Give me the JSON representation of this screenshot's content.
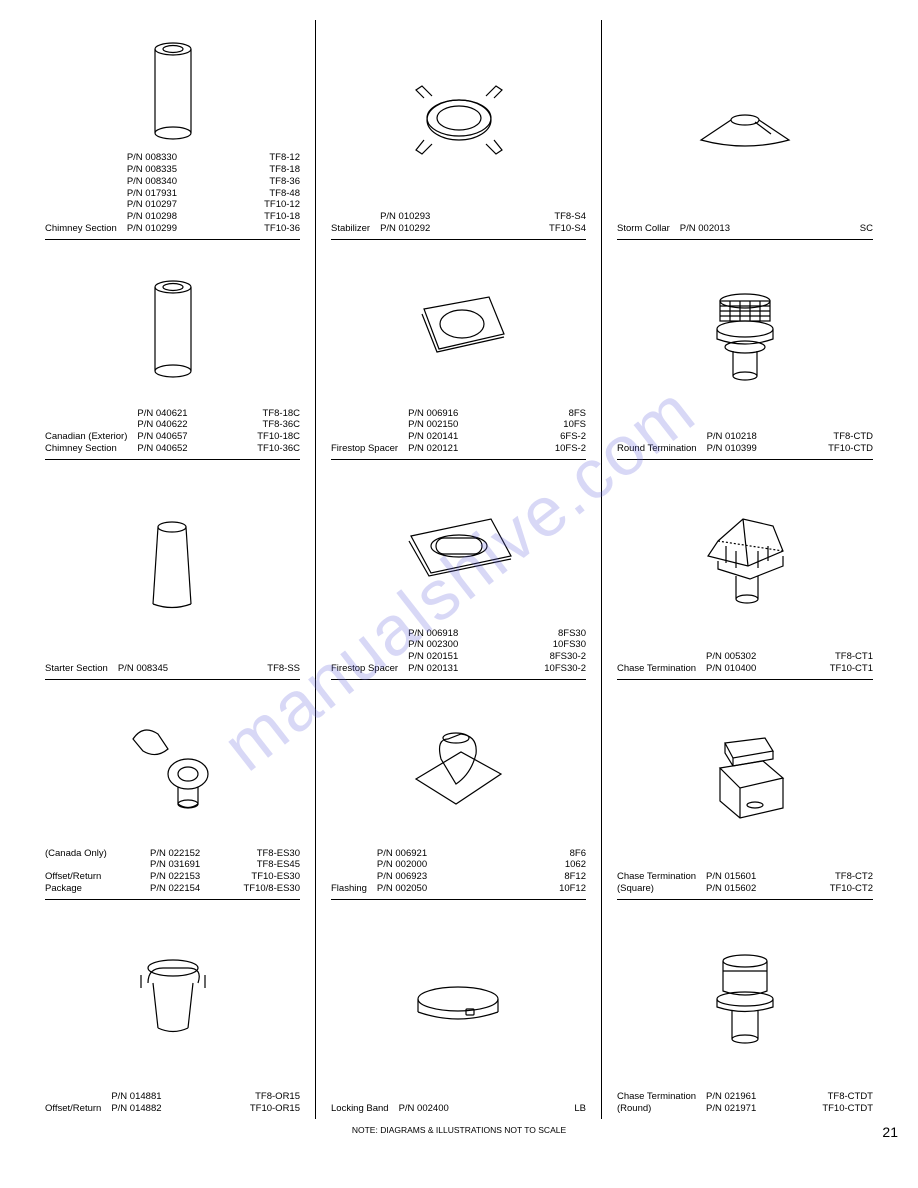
{
  "page_number": "21",
  "footer_note": "NOTE: DIAGRAMS & ILLUSTRATIONS NOT TO SCALE",
  "watermark": "manualshive.com",
  "columns": [
    [
      {
        "title": "Chimney Section",
        "pns": [
          "P/N 008330",
          "P/N 008335",
          "P/N 008340",
          "P/N 017931",
          "P/N 010297",
          "P/N 010298",
          "P/N 010299"
        ],
        "codes": [
          "TF8-12",
          "TF8-18",
          "TF8-36",
          "TF8-48",
          "TF10-12",
          "TF10-18",
          "TF10-36"
        ],
        "shape": "cylinder"
      },
      {
        "title": "Canadian (Exterior)\nChimney Section",
        "pns": [
          "P/N 040621",
          "P/N 040622",
          "P/N 040657",
          "P/N 040652"
        ],
        "codes": [
          "TF8-18C",
          "TF8-36C",
          "TF10-18C",
          "TF10-36C"
        ],
        "shape": "cylinder"
      },
      {
        "title": "Starter Section",
        "pns": [
          "P/N 008345"
        ],
        "codes": [
          "TF8-SS"
        ],
        "shape": "tapered-cyl"
      },
      {
        "title": "(Canada Only)\n\nOffset/Return Package",
        "pns": [
          "P/N 022152",
          "P/N 031691",
          "P/N 022153",
          "P/N 022154"
        ],
        "codes": [
          "TF8-ES30",
          "TF8-ES45",
          "TF10-ES30",
          "TF10/8-ES30"
        ],
        "shape": "offset-pkg"
      },
      {
        "title": "Offset/Return",
        "pns": [
          "P/N 014881",
          "P/N 014882"
        ],
        "codes": [
          "TF8-OR15",
          "TF10-OR15"
        ],
        "shape": "offset"
      }
    ],
    [
      {
        "title": "Stabilizer",
        "pns": [
          "P/N 010293",
          "P/N 010292"
        ],
        "codes": [
          "TF8-S4",
          "TF10-S4"
        ],
        "shape": "stabilizer"
      },
      {
        "title": "Firestop Spacer",
        "pns": [
          "P/N 006916",
          "P/N 002150",
          "P/N 020141",
          "P/N 020121"
        ],
        "codes": [
          "8FS",
          "10FS",
          "6FS-2",
          "10FS-2"
        ],
        "shape": "firestop-sq"
      },
      {
        "title": "Firestop Spacer",
        "pns": [
          "P/N 006918",
          "P/N 002300",
          "P/N 020151",
          "P/N 020131"
        ],
        "codes": [
          "8FS30",
          "10FS30",
          "8FS30-2",
          "10FS30-2"
        ],
        "shape": "firestop-oval"
      },
      {
        "title": "Flashing",
        "pns": [
          "P/N 006921",
          "P/N 002000",
          "P/N 006923",
          "P/N 002050"
        ],
        "codes": [
          "8F6",
          "1062",
          "8F12",
          "10F12"
        ],
        "shape": "flashing"
      },
      {
        "title": "Locking Band",
        "pns": [
          "P/N 002400"
        ],
        "codes": [
          "LB"
        ],
        "shape": "band"
      }
    ],
    [
      {
        "title": "Storm Collar",
        "pns": [
          "P/N 002013"
        ],
        "codes": [
          "SC"
        ],
        "shape": "collar"
      },
      {
        "title": "Round Termination",
        "pns": [
          "P/N 010218",
          "P/N 010399"
        ],
        "codes": [
          "TF8-CTD",
          "TF10-CTD"
        ],
        "shape": "round-term"
      },
      {
        "title": "Chase Termination",
        "pns": [
          "P/N 005302",
          "P/N 010400"
        ],
        "codes": [
          "TF8-CT1",
          "TF10-CT1"
        ],
        "shape": "chase-pyr"
      },
      {
        "title": "Chase Termination\n(Square)",
        "pns": [
          "P/N 015601",
          "P/N 015602"
        ],
        "codes": [
          "TF8-CT2",
          "TF10-CT2"
        ],
        "shape": "chase-sq"
      },
      {
        "title": "Chase Termination\n(Round)",
        "pns": [
          "P/N 021961",
          "P/N 021971"
        ],
        "codes": [
          "TF8-CTDT",
          "TF10-CTDT"
        ],
        "shape": "chase-rnd"
      }
    ]
  ]
}
